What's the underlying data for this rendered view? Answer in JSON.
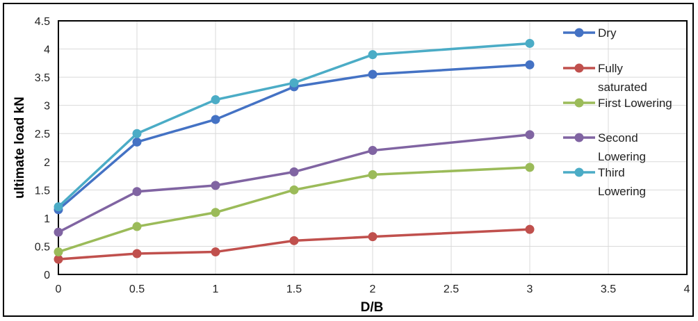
{
  "chart_data": {
    "type": "line",
    "title": "",
    "xlabel": "D/B",
    "ylabel": "ultimate load kN",
    "xlim": [
      0,
      4
    ],
    "ylim": [
      0,
      4.5
    ],
    "x_ticks": [
      "0",
      "0.5",
      "1",
      "1.5",
      "2",
      "2.5",
      "3",
      "3.5",
      "4"
    ],
    "y_ticks": [
      "0",
      "0.5",
      "1",
      "1.5",
      "2",
      "2.5",
      "3",
      "3.5",
      "4",
      "4.5"
    ],
    "grid": true,
    "legend_position": "right",
    "x": [
      0,
      0.5,
      1,
      1.5,
      2,
      3
    ],
    "series": [
      {
        "name": "Dry",
        "legend_lines": [
          "Dry"
        ],
        "color": "#4472c4",
        "values": [
          1.15,
          2.35,
          2.75,
          3.33,
          3.55,
          3.72
        ]
      },
      {
        "name": "Fully saturated",
        "legend_lines": [
          "Fully",
          "saturated"
        ],
        "color": "#c0504d",
        "values": [
          0.27,
          0.37,
          0.4,
          0.6,
          0.67,
          0.8
        ]
      },
      {
        "name": "First Lowering",
        "legend_lines": [
          "First Lowering"
        ],
        "color": "#9bbb59",
        "values": [
          0.4,
          0.85,
          1.1,
          1.5,
          1.77,
          1.9
        ]
      },
      {
        "name": "Second Lowering",
        "legend_lines": [
          "Second",
          "Lowering"
        ],
        "color": "#8064a2",
        "values": [
          0.75,
          1.47,
          1.58,
          1.82,
          2.2,
          2.48
        ]
      },
      {
        "name": "Third Lowering",
        "legend_lines": [
          "Third",
          "Lowering"
        ],
        "color": "#4bacc6",
        "values": [
          1.2,
          2.5,
          3.1,
          3.4,
          3.9,
          4.1
        ]
      }
    ]
  }
}
